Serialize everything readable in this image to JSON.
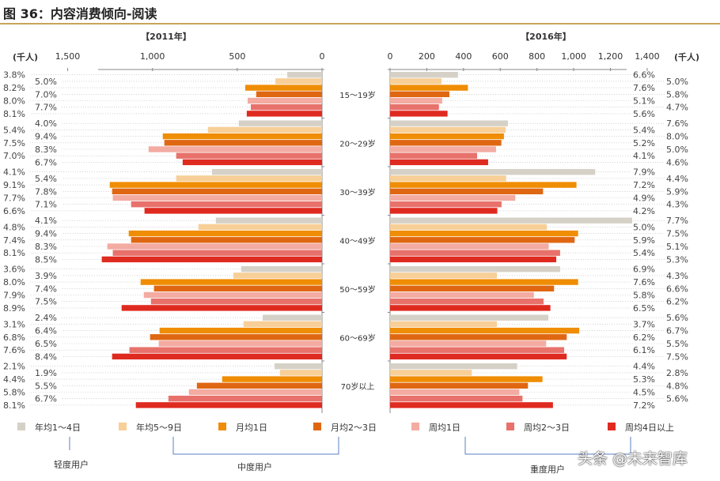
{
  "title": "图 36：内容消费倾向-阅读",
  "watermark": "头条 @未来智库",
  "chart_data": [
    {
      "type": "bar",
      "orientation": "horizontal",
      "direction": "right-to-left",
      "title": "【2011年】",
      "unit_label": "(千人)",
      "xlim": [
        0,
        1500
      ],
      "ticks": [
        "0",
        "500",
        "1,000",
        "1,500"
      ],
      "tick_values": [
        0,
        500,
        1000,
        1500
      ],
      "categories": [
        "15～19岁",
        "20～29岁",
        "30～39岁",
        "40～49岁",
        "50～59岁",
        "60～69岁",
        "70岁以上"
      ],
      "series": [
        {
          "name": "年均1～4日",
          "values": [
            205,
            491,
            649,
            626,
            477,
            350,
            280
          ],
          "labels": [
            "3.8%",
            "4.0%",
            "4.1%",
            "4.1%",
            "3.6%",
            "2.4%",
            "2.1%"
          ]
        },
        {
          "name": "年均5～9日",
          "values": [
            275,
            673,
            860,
            729,
            523,
            463,
            248
          ],
          "labels": [
            "5.0%",
            "5.4%",
            "5.4%",
            "4.8%",
            "3.9%",
            "3.1%",
            "1.9%"
          ]
        },
        {
          "name": "月均1日",
          "values": [
            453,
            939,
            1252,
            1140,
            1070,
            958,
            589
          ],
          "labels": [
            "8.2%",
            "9.4%",
            "9.1%",
            "9.4%",
            "8.0%",
            "6.4%",
            "4.4%"
          ]
        },
        {
          "name": "月均2～3日",
          "values": [
            388,
            930,
            1238,
            1126,
            991,
            1014,
            738
          ],
          "labels": [
            "7.0%",
            "7.5%",
            "7.8%",
            "7.4%",
            "7.4%",
            "6.8%",
            "5.5%"
          ]
        },
        {
          "name": "周均1日",
          "values": [
            439,
            1023,
            1234,
            1266,
            1051,
            963,
            785
          ],
          "labels": [
            "8.0%",
            "8.3%",
            "7.7%",
            "8.3%",
            "7.9%",
            "6.5%",
            "5.8%"
          ]
        },
        {
          "name": "周均2～3日",
          "values": [
            420,
            860,
            1126,
            1234,
            1009,
            1136,
            906
          ],
          "labels": [
            "7.7%",
            "7.0%",
            "7.1%",
            "8.1%",
            "7.5%",
            "7.6%",
            "6.7%"
          ]
        },
        {
          "name": "周均4日以上",
          "values": [
            444,
            822,
            1047,
            1299,
            1182,
            1238,
            1098
          ],
          "labels": [
            "8.1%",
            "6.7%",
            "6.6%",
            "8.5%",
            "8.9%",
            "8.4%",
            "8.1%"
          ]
        }
      ]
    },
    {
      "type": "bar",
      "orientation": "horizontal",
      "direction": "left-to-right",
      "title": "【2016年】",
      "unit_label": "(千人)",
      "xlim": [
        0,
        1400
      ],
      "ticks": [
        "0",
        "200",
        "400",
        "600",
        "800",
        "1,000",
        "1,200",
        "1,400"
      ],
      "tick_values": [
        0,
        200,
        400,
        600,
        800,
        1000,
        1200,
        1400
      ],
      "categories": [
        "15～19岁",
        "20～29岁",
        "30～39岁",
        "40～49岁",
        "50～59岁",
        "60～69岁",
        "70岁以上"
      ],
      "series": [
        {
          "name": "年均1～4日",
          "values": [
            370,
            642,
            1117,
            1318,
            926,
            862,
            692
          ],
          "labels": [
            "6.6%",
            "7.6%",
            "7.9%",
            "7.7%",
            "6.9%",
            "5.6%",
            "4.4%"
          ]
        },
        {
          "name": "年均5～9日",
          "values": [
            280,
            629,
            632,
            854,
            582,
            582,
            445
          ],
          "labels": [
            "5.0%",
            "5.4%",
            "4.4%",
            "5.0%",
            "4.3%",
            "3.7%",
            "2.8%"
          ]
        },
        {
          "name": "月均1日",
          "values": [
            424,
            620,
            1015,
            1024,
            1024,
            1030,
            830
          ],
          "labels": [
            "7.6%",
            "8.0%",
            "7.2%",
            "7.5%",
            "7.6%",
            "6.7%",
            "5.3%"
          ]
        },
        {
          "name": "月均2～3日",
          "values": [
            323,
            606,
            833,
            1005,
            893,
            962,
            751
          ],
          "labels": [
            "5.8%",
            "5.2%",
            "5.9%",
            "5.9%",
            "6.6%",
            "6.2%",
            "4.8%"
          ]
        },
        {
          "name": "周均1日",
          "values": [
            284,
            577,
            682,
            864,
            783,
            850,
            704
          ],
          "labels": [
            "5.1%",
            "5.0%",
            "4.9%",
            "5.1%",
            "5.8%",
            "5.5%",
            "4.5%"
          ]
        },
        {
          "name": "周均2～3日",
          "values": [
            266,
            474,
            607,
            926,
            836,
            948,
            721
          ],
          "labels": [
            "4.7%",
            "4.1%",
            "4.3%",
            "5.4%",
            "6.2%",
            "6.1%",
            "5.6%"
          ]
        },
        {
          "name": "周均4日以上",
          "values": [
            313,
            534,
            584,
            905,
            873,
            962,
            887
          ],
          "labels": [
            "5.6%",
            "4.6%",
            "4.2%",
            "5.3%",
            "6.5%",
            "7.5%",
            "7.2%"
          ]
        }
      ]
    }
  ],
  "colors": [
    "#d6d1c7",
    "#f7cf97",
    "#ef8d04",
    "#e06712",
    "#f3aba2",
    "#e8716b",
    "#df2a20"
  ],
  "user_groups": [
    {
      "label": "轻度用户"
    },
    {
      "label": "中度用户"
    },
    {
      "label": "重度用户"
    }
  ]
}
